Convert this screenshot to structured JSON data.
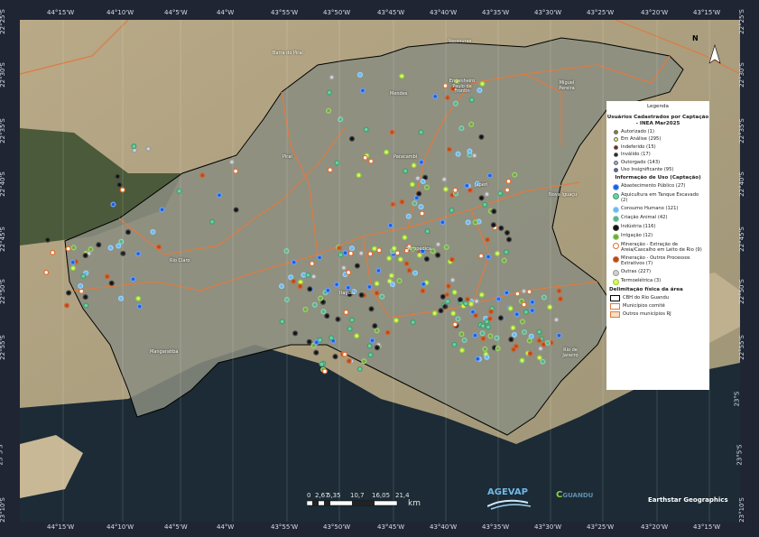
{
  "axes": {
    "top_ticks": [
      "44°15'W",
      "44°10'W",
      "44°5'W",
      "44°W",
      "43°55'W",
      "43°50'W",
      "43°45'W",
      "43°40'W",
      "43°35'W",
      "43°30'W",
      "43°25'W",
      "43°20'W",
      "43°15'W"
    ],
    "bottom_ticks": [
      "44°15'W",
      "44°10'W",
      "44°5'W",
      "44°W",
      "43°55'W",
      "43°50'W",
      "43°45'W",
      "43°40'W",
      "43°35'W",
      "43°30'W",
      "43°25'W",
      "43°20'W",
      "43°15'W"
    ],
    "left_ticks": [
      "22°25'S",
      "22°30'S",
      "22°35'S",
      "22°40'S",
      "22°45'S",
      "22°50'S",
      "22°55'S",
      "23°S",
      "23°5'S",
      "23°10'S"
    ],
    "right_ticks": [
      "22°25'S",
      "22°30'S",
      "22°35'S",
      "22°40'S",
      "22°45'S",
      "22°50'S",
      "22°55'S",
      "23°S",
      "23°5'S",
      "23°10'S"
    ]
  },
  "places": [
    {
      "name": "Barra do Piraí"
    },
    {
      "name": "Vassouras"
    },
    {
      "name": "Engenheiro Paulo de Frontin"
    },
    {
      "name": "Miguel Pereira"
    },
    {
      "name": "Mendes"
    },
    {
      "name": "Piraí"
    },
    {
      "name": "Paracambi"
    },
    {
      "name": "Japeri"
    },
    {
      "name": "Nova Iguaçu"
    },
    {
      "name": "Rio Claro"
    },
    {
      "name": "Seropédica"
    },
    {
      "name": "Itaguaí"
    },
    {
      "name": "Mangaratiba"
    },
    {
      "name": "Rio de Janeiro"
    }
  ],
  "north_arrow": "N",
  "legend": {
    "title": "Legenda",
    "status_heading": "Usuários Cadastrados por Captação - INEA Mar2025",
    "status": [
      {
        "label": "Autorizado (1)",
        "color": "#7a8a3a"
      },
      {
        "label": "Em Análise (295)",
        "color": "#f2ee6a"
      },
      {
        "label": "Indeferido (15)",
        "color": "#8a1a1a"
      },
      {
        "label": "Inválido (17)",
        "color": "#222222"
      },
      {
        "label": "Outorgado (143)",
        "color": "#8fb6c9"
      },
      {
        "label": "Uso Insignificante (95)",
        "color": "#5566c0"
      }
    ],
    "use_heading": "Informação de Uso (Captação)",
    "uses": [
      {
        "label": "Abastecimento Público (27)",
        "color": "#1f5fd6",
        "ring": "#6aa0ff"
      },
      {
        "label": "Aquicultura em Tanque Escavado (2)",
        "color": "#6fd0a0",
        "ring": "#3f9f70"
      },
      {
        "label": "Consumo Humano (121)",
        "color": "#6ab8f0",
        "ring": "#9ad0f8"
      },
      {
        "label": "Criação Animal (42)",
        "color": "#5ab090",
        "ring": "#8ad0b0"
      },
      {
        "label": "Indústria (116)",
        "color": "#111111",
        "ring": "#444444"
      },
      {
        "label": "Irrigação (12)",
        "color": "#6faa40",
        "ring": "#9fd070"
      },
      {
        "label": "Mineração - Extração de Areia/Cascalho em Leito de Rio (9)",
        "color": "#ffffff",
        "ring": "#e07030"
      },
      {
        "label": "Mineração - Outros Processos Extrativos (7)",
        "color": "#b84a1a",
        "ring": "#d06a3a"
      },
      {
        "label": "Outras (227)",
        "color": "#d0d0d0",
        "ring": "#999999"
      },
      {
        "label": "Termoelétrica (3)",
        "color": "#e8f060",
        "ring": "#8ad040"
      }
    ],
    "area_heading": "Delimitação física da área",
    "areas": [
      {
        "label": "CBH do Rio Guandu",
        "fill": "#ffffff",
        "stroke": "#000000"
      },
      {
        "label": "Municípios comitê",
        "fill": "#ffffff",
        "stroke": "#e07a40"
      },
      {
        "label": "Outros municípios RJ",
        "fill": "#f6e0c0",
        "stroke": "#e07a40"
      }
    ]
  },
  "scale_bar": {
    "labels": [
      "0",
      "2,67",
      "5,35",
      "10,7",
      "16,05",
      "21,4"
    ],
    "unit": "km"
  },
  "logos": {
    "agevap": "AGEVAP",
    "guandu": "GUANDU"
  },
  "attribution": "Earthstar Geographics"
}
